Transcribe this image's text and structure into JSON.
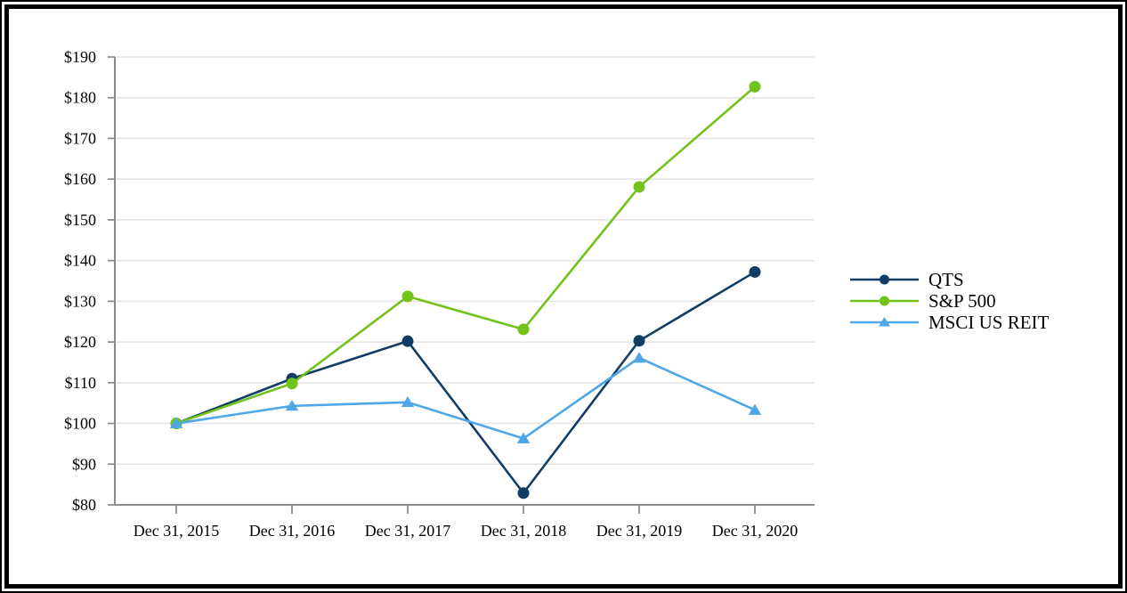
{
  "chart_data": {
    "type": "line",
    "title": "",
    "x_categories": [
      "Dec 31, 2015",
      "Dec 31, 2016",
      "Dec 31, 2017",
      "Dec 31, 2018",
      "Dec 31, 2019",
      "Dec 31, 2020"
    ],
    "y_tick_labels": [
      "$80",
      "$90",
      "$100",
      "$110",
      "$120",
      "$130",
      "$140",
      "$150",
      "$160",
      "$170",
      "$180",
      "$190"
    ],
    "ylim": [
      80,
      190
    ],
    "ytick_step": 10,
    "grid": "horizontal",
    "legend_position": "right",
    "series": [
      {
        "name": "QTS",
        "marker": "circle",
        "color": "#113D64",
        "values": [
          100.0,
          111.0,
          120.2,
          82.9,
          120.3,
          137.2
        ]
      },
      {
        "name": "S&P 500",
        "marker": "circle",
        "color": "#72C21C",
        "values": [
          100.0,
          109.8,
          131.2,
          123.1,
          158.1,
          182.7
        ]
      },
      {
        "name": "MSCI US REIT",
        "marker": "triangle",
        "color": "#4FA7E8",
        "values": [
          100.0,
          104.3,
          105.2,
          96.3,
          116.1,
          103.3
        ]
      }
    ],
    "axis_color": "#8C8C8C",
    "gridline_color": "#E3E3E3",
    "text_color": "#000000"
  }
}
